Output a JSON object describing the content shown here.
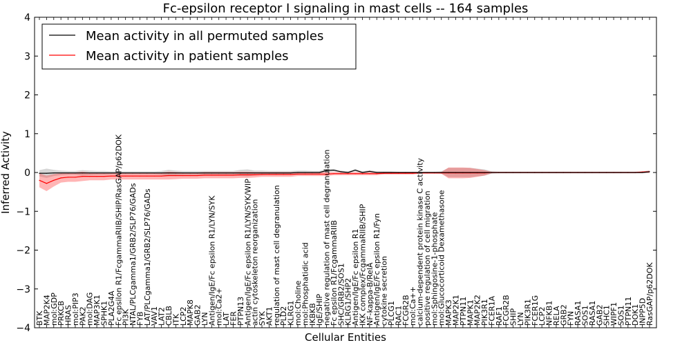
{
  "chart_data": {
    "type": "line",
    "title": "Fc-epsilon receptor I signaling in mast cells -- 164 samples",
    "xlabel": "Cellular Entities",
    "ylabel": "Inferred Activity",
    "ylim": [
      -4,
      4
    ],
    "yticks": [
      -4,
      -3,
      -2,
      -1,
      0,
      1,
      2,
      3,
      4
    ],
    "ytick_labels": [
      "−4",
      "−3",
      "−2",
      "−1",
      "0",
      "1",
      "2",
      "3",
      "4"
    ],
    "legend_position": "top-left",
    "categories": [
      "BTK",
      "MAP2K4",
      "mol:GDP",
      "PRKCB",
      "HRAS",
      "mol:PIP3",
      "PAK2",
      "mol:DAG",
      "MAP3K1",
      "SPHK1",
      "PLA2G4A",
      "Fc epsilon R1/FcgammaRIIB/SHIP/RasGAP/p62DOK",
      "PI3K",
      "NTAL/PLCgamma1/GRB2/SLP76/GADs",
      "FYB",
      "LAT/PLCgamma1/GRB2/SLP76/GADs",
      "VAV1",
      "LAT2",
      "CBLB",
      "ITK",
      "LCP2",
      "MAPK8",
      "GAB2",
      "LYN",
      "Antigen/IgE/Fc epsilon R1/LYN/SYK",
      "mol:Ca2+",
      "LAT",
      "FER",
      "PTPN13",
      "Antigen/IgE/Fc epsilon R1/LYN/SYK/WIP",
      "actin cytoskeleton reorganization",
      "SYK",
      "AKT1",
      "regulation of mast cell degranulation",
      "PLD2",
      "KLRG1",
      "mol:Choline",
      "mol:Phosphatidic acid",
      "IKBKB",
      "IgE/SHIP",
      "negative regulation of mast cell degranulation",
      "Fc epsilon R1/FcgammaRIIB",
      "SHC/GRB2/SOS1",
      "KLRG1/SHP2",
      "Antigen/IgE/Fc epsilon R1",
      "IKK complex/FcgammaRIIB/SHIP",
      "NF-kappa-B/RelA",
      "Antigen/IgE/Fc epsilon R1/Fyn",
      "cytokine secretion",
      "PLCG1",
      "RAC1",
      "FCGR2B",
      "mol:Ca++",
      "calcium-dependent protein kinase C activity",
      "positive regulation of cell migration",
      "mol:Sphingosine-1-phosphate",
      "mol:Glucocorticoid Dexamethasone",
      "MAPK3",
      "MAP2K1",
      "PTPN11",
      "MAPK1",
      "MAP2K2",
      "PIK3R1",
      "FCER1A",
      "RAF1",
      "FCGR2B",
      "SHIP",
      "LYN",
      "PIK3R1",
      "FCER1G",
      "LCP2",
      "NFKB1",
      "RELA",
      "GRB2",
      "FYN",
      "RASA1",
      "SOS1",
      "RASA1",
      "GAB2",
      "SHC1",
      "WIPF1",
      "SOS1",
      "PTPN11",
      "DOK1",
      "INPP5D",
      "RasGAP/p62DOK"
    ],
    "series": [
      {
        "name": "Mean activity in all permuted samples",
        "color": "#000000",
        "values": [
          -0.02,
          -0.02,
          -0.01,
          -0.01,
          -0.01,
          -0.01,
          -0.01,
          -0.01,
          -0.01,
          -0.01,
          -0.01,
          -0.01,
          -0.01,
          -0.01,
          -0.01,
          -0.01,
          -0.01,
          -0.01,
          -0.01,
          -0.01,
          -0.01,
          -0.01,
          -0.01,
          -0.01,
          -0.01,
          -0.01,
          -0.01,
          -0.01,
          -0.01,
          -0.01,
          -0.01,
          -0.01,
          -0.01,
          -0.01,
          -0.01,
          -0.01,
          0.0,
          0.0,
          0.0,
          0.0,
          0.05,
          0.06,
          0.02,
          0.0,
          0.06,
          0.0,
          0.03,
          0.0,
          0.0,
          0.0,
          0.0,
          0.0,
          0.0,
          0.0,
          0.0,
          0.0,
          0.0,
          0.0,
          0.0,
          0.0,
          0.0,
          0.0,
          0.0,
          0.0,
          0.0,
          0.0,
          0.0,
          0.0,
          0.0,
          0.0,
          0.0,
          0.0,
          0.0,
          0.0,
          0.0,
          0.0,
          0.0,
          0.0,
          0.0,
          0.0,
          0.0,
          0.0,
          0.0,
          0.0,
          0.0,
          0.02
        ],
        "band": [
          0.08,
          0.12,
          0.08,
          0.06,
          0.05,
          0.05,
          0.07,
          0.06,
          0.05,
          0.05,
          0.04,
          0.04,
          0.04,
          0.04,
          0.04,
          0.04,
          0.04,
          0.05,
          0.08,
          0.06,
          0.05,
          0.05,
          0.05,
          0.05,
          0.05,
          0.05,
          0.05,
          0.05,
          0.08,
          0.09,
          0.06,
          0.06,
          0.05,
          0.05,
          0.05,
          0.05,
          0.05,
          0.05,
          0.04,
          0.04,
          0.03,
          0.03,
          0.03,
          0.03,
          0.03,
          0.03,
          0.03,
          0.03,
          0.03,
          0.03,
          0.02,
          0.02,
          0.02,
          0.02,
          0.02,
          0.02,
          0.03,
          0.12,
          0.12,
          0.12,
          0.12,
          0.1,
          0.08,
          0.03,
          0.02,
          0.02,
          0.02,
          0.02,
          0.02,
          0.02,
          0.02,
          0.02,
          0.02,
          0.02,
          0.02,
          0.02,
          0.02,
          0.02,
          0.02,
          0.02,
          0.02,
          0.02,
          0.02,
          0.02,
          0.02,
          0.03
        ]
      },
      {
        "name": "Mean activity in patient samples",
        "color": "#ff0000",
        "values": [
          -0.2,
          -0.28,
          -0.2,
          -0.14,
          -0.12,
          -0.12,
          -0.1,
          -0.1,
          -0.1,
          -0.1,
          -0.09,
          -0.09,
          -0.09,
          -0.09,
          -0.09,
          -0.09,
          -0.09,
          -0.09,
          -0.08,
          -0.08,
          -0.08,
          -0.08,
          -0.08,
          -0.07,
          -0.07,
          -0.07,
          -0.07,
          -0.07,
          -0.06,
          -0.06,
          -0.06,
          -0.05,
          -0.05,
          -0.05,
          -0.05,
          -0.05,
          -0.04,
          -0.04,
          -0.04,
          -0.04,
          -0.04,
          -0.03,
          -0.03,
          -0.03,
          -0.03,
          -0.03,
          -0.03,
          -0.03,
          -0.02,
          -0.02,
          -0.02,
          -0.02,
          -0.02,
          -0.01,
          -0.01,
          -0.01,
          -0.01,
          -0.01,
          -0.01,
          -0.01,
          -0.01,
          -0.01,
          -0.01,
          0.0,
          0.0,
          0.0,
          0.0,
          0.0,
          0.0,
          0.0,
          0.0,
          0.0,
          0.0,
          0.0,
          0.0,
          0.0,
          0.0,
          0.0,
          0.0,
          0.0,
          0.0,
          0.0,
          0.0,
          0.0,
          0.01,
          0.02
        ],
        "band": [
          0.18,
          0.2,
          0.16,
          0.12,
          0.12,
          0.12,
          0.12,
          0.1,
          0.1,
          0.1,
          0.09,
          0.09,
          0.09,
          0.09,
          0.09,
          0.09,
          0.09,
          0.09,
          0.1,
          0.09,
          0.08,
          0.08,
          0.08,
          0.08,
          0.08,
          0.08,
          0.08,
          0.08,
          0.08,
          0.08,
          0.07,
          0.06,
          0.06,
          0.06,
          0.06,
          0.06,
          0.05,
          0.05,
          0.05,
          0.05,
          0.05,
          0.04,
          0.04,
          0.04,
          0.04,
          0.04,
          0.04,
          0.04,
          0.03,
          0.03,
          0.03,
          0.03,
          0.03,
          0.02,
          0.02,
          0.02,
          0.02,
          0.14,
          0.14,
          0.14,
          0.13,
          0.1,
          0.07,
          0.02,
          0.02,
          0.02,
          0.02,
          0.02,
          0.02,
          0.02,
          0.02,
          0.02,
          0.02,
          0.02,
          0.02,
          0.02,
          0.02,
          0.02,
          0.02,
          0.02,
          0.02,
          0.02,
          0.02,
          0.02,
          0.02,
          0.03
        ]
      }
    ]
  }
}
